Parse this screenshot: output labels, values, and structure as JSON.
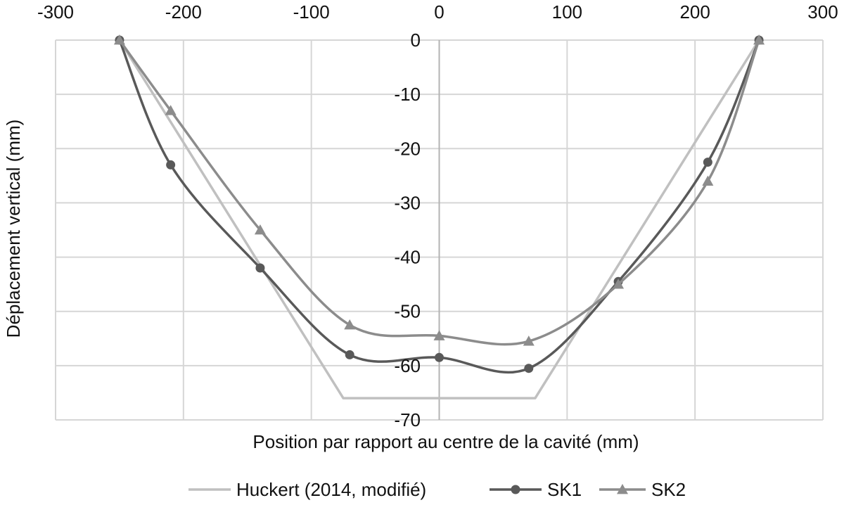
{
  "chart_data": {
    "type": "line",
    "title": "",
    "xlabel": "Position par rapport au centre de la cavité (mm)",
    "ylabel": "Déplacement vertical (mm)",
    "xlim": [
      -300,
      300
    ],
    "ylim": [
      -70,
      0
    ],
    "x_ticks": [
      "-300",
      "-200",
      "-100",
      "0",
      "100",
      "200",
      "300"
    ],
    "y_ticks": [
      "0",
      "-10",
      "-20",
      "-30",
      "-40",
      "-50",
      "-60",
      "-70"
    ],
    "grid": true,
    "legend_position": "bottom",
    "series": [
      {
        "name": "Huckert (2014, modifié)",
        "color": "#c0c0c0",
        "marker": "none",
        "smooth": false,
        "x": [
          -250,
          -75,
          75,
          250
        ],
        "y": [
          0,
          -66,
          -66,
          0
        ]
      },
      {
        "name": "SK1",
        "color": "#595959",
        "marker": "circle",
        "smooth": true,
        "x": [
          -250,
          -210,
          -140,
          -70,
          0,
          70,
          140,
          210,
          250
        ],
        "y": [
          0,
          -23,
          -42,
          -58,
          -58.5,
          -60.5,
          -44.5,
          -22.5,
          0
        ]
      },
      {
        "name": "SK2",
        "color": "#8c8c8c",
        "marker": "triangle",
        "smooth": true,
        "x": [
          -250,
          -210,
          -140,
          -70,
          0,
          70,
          140,
          210,
          250
        ],
        "y": [
          0,
          -13,
          -35,
          -52.5,
          -54.5,
          -55.5,
          -45,
          -26,
          0
        ]
      }
    ]
  }
}
